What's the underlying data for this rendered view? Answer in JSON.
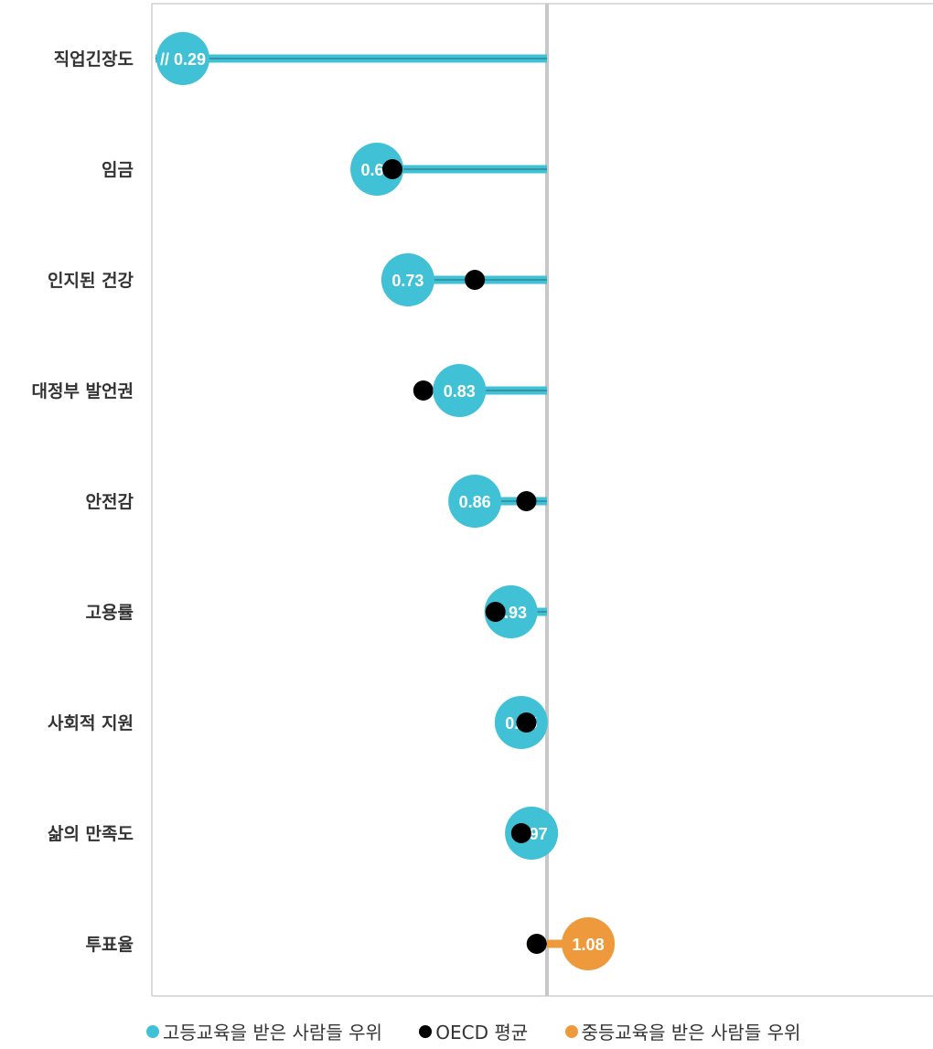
{
  "colors": {
    "higher": "#41C1D5",
    "oecd": "#000000",
    "secondary": "#EE9A3C",
    "baseline": "#C8C8C8",
    "frame": "#D0D0D0",
    "category_text": "#333333"
  },
  "chart_data": {
    "type": "dot",
    "orientation": "horizontal",
    "baseline": 1.0,
    "xlim": [
      0.25,
      1.5
    ],
    "grid": false,
    "categories": [
      "직업긴장도",
      "임금",
      "인지된 건강",
      "대정부 발언권",
      "안전감",
      "고용률",
      "사회적 지원",
      "삶의 만족도",
      "투표율"
    ],
    "series": [
      {
        "name": "고등교육을 받은 사람들 우위",
        "role": "higher_education",
        "values": [
          0.29,
          0.67,
          0.73,
          0.83,
          0.86,
          0.93,
          0.95,
          0.97,
          null
        ],
        "labels": [
          "// 0.29",
          "0.67",
          "0.73",
          "0.83",
          "0.86",
          "0.93",
          "0.95",
          "0.97",
          ""
        ]
      },
      {
        "name": "OECD 평균",
        "role": "oecd_average",
        "values": [
          null,
          0.7,
          0.86,
          0.76,
          0.96,
          0.9,
          0.96,
          0.95,
          0.98
        ]
      },
      {
        "name": "중등교육을 받은 사람들 우위",
        "role": "secondary_education",
        "values": [
          null,
          null,
          null,
          null,
          null,
          null,
          null,
          null,
          1.08
        ],
        "labels": [
          "",
          "",
          "",
          "",
          "",
          "",
          "",
          "",
          "1.08"
        ]
      }
    ],
    "legend": {
      "position": "bottom",
      "items": [
        {
          "label": "고등교육을 받은 사람들 우위",
          "color": "#41C1D5"
        },
        {
          "label": "OECD 평균",
          "color": "#000000"
        },
        {
          "label": "중등교육을 받은 사람들 우위",
          "color": "#EE9A3C"
        }
      ]
    }
  }
}
